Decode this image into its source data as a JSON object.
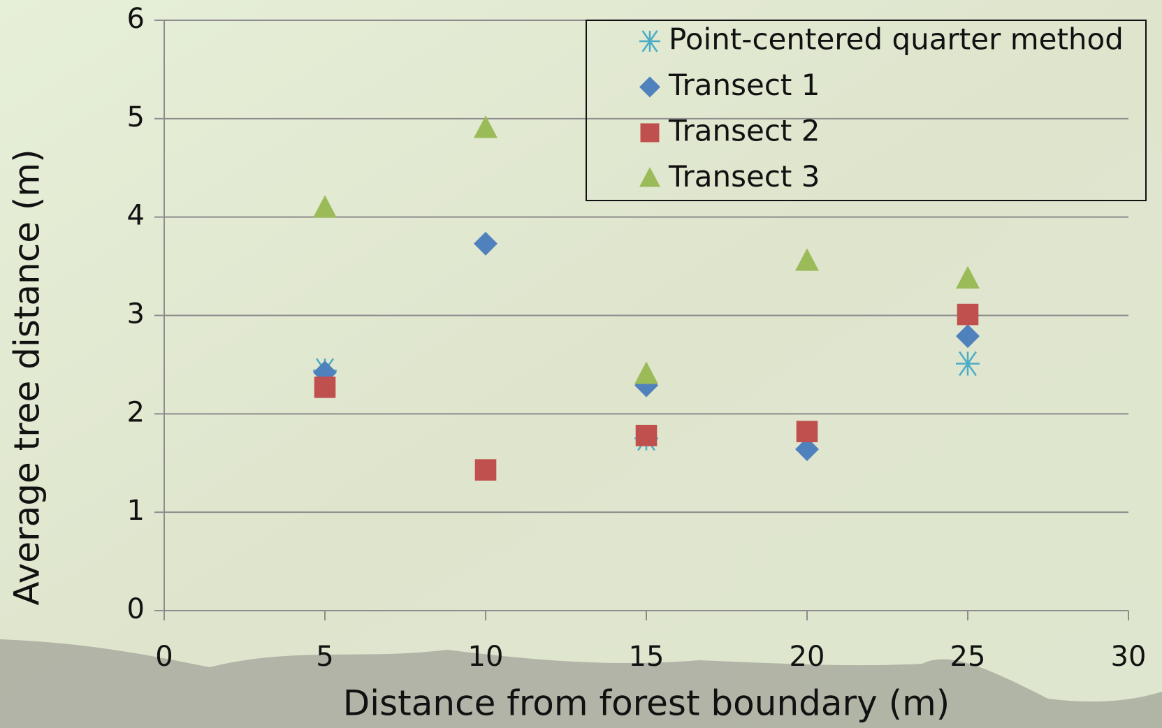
{
  "chart_data": {
    "type": "scatter",
    "x_label": "Distance from forest boundary (m)",
    "y_label": "Average tree distance (m)",
    "xlim": [
      0,
      30
    ],
    "xticks": [
      0,
      5,
      10,
      15,
      20,
      25,
      30
    ],
    "ylim": [
      0,
      6
    ],
    "yticks": [
      0,
      1,
      2,
      3,
      4,
      5,
      6
    ],
    "grid": true,
    "legend": "upper right",
    "series": [
      {
        "name": "Point-centered quarter method",
        "color": "#4bacc6",
        "marker": "asterisk",
        "x": [
          5,
          15,
          25
        ],
        "values": [
          2.44,
          1.75,
          2.51
        ]
      },
      {
        "name": "Transect 1",
        "color": "#4f81bd",
        "marker": "diamond",
        "x": [
          5,
          10,
          15,
          20,
          25
        ],
        "values": [
          2.42,
          3.73,
          2.29,
          1.64,
          2.79
        ]
      },
      {
        "name": "Transect 2",
        "color": "#c0504d",
        "marker": "square",
        "x": [
          5,
          10,
          15,
          20,
          25
        ],
        "values": [
          2.27,
          1.43,
          1.78,
          1.82,
          3.01
        ]
      },
      {
        "name": "Transect 3",
        "color": "#9bbb59",
        "marker": "triangle",
        "x": [
          5,
          10,
          15,
          20,
          25
        ],
        "values": [
          4.09,
          4.9,
          2.4,
          3.55,
          3.37
        ]
      }
    ]
  }
}
